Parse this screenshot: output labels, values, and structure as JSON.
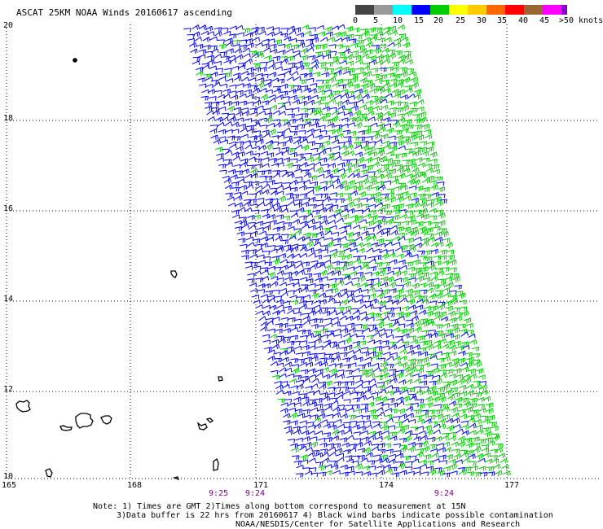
{
  "title": "ASCAT 25KM NOAA Winds 20160617 ascending",
  "legend": {
    "labels": [
      "0",
      "5",
      "10",
      "15",
      "20",
      "25",
      "30",
      "35",
      "40",
      "45",
      ">50 knots"
    ],
    "colors": [
      "#444444",
      "#999999",
      "#00ffff",
      "#0000ff",
      "#00cc00",
      "#ffff00",
      "#ffcc00",
      "#ff6600",
      "#ff0000",
      "#996633",
      "#ff00ff",
      "#8800cc",
      "#440088"
    ]
  },
  "axes": {
    "lon_labels": [
      "165",
      "168",
      "171",
      "174",
      "177"
    ],
    "lat_labels": [
      "20",
      "18",
      "16",
      "14",
      "12",
      "10"
    ]
  },
  "pass_times": [
    "9:25",
    "9:24",
    "9:24"
  ],
  "barb_colors": {
    "light": "#0000ff",
    "moderate": "#00cc00"
  },
  "notes": {
    "line1": "Note: 1) Times are GMT 2)Times along bottom correspond to measurement at 15N",
    "line2": "3)Data buffer is 22 hrs from 20160617 4) Black wind barbs indicate possible contamination",
    "line3": "NOAA/NESDIS/Center for Satellite Applications and Research"
  }
}
